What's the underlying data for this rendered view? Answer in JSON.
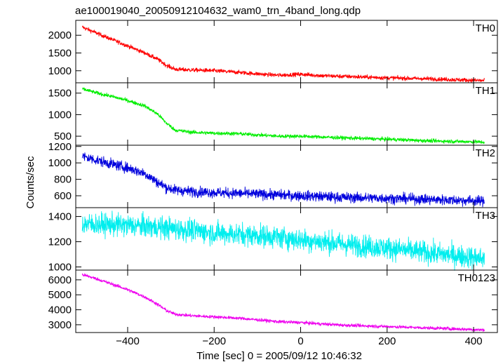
{
  "chart_data": {
    "type": "line",
    "title": "ae100019040_20050912104632_wam0_trn_4band_long.qdp",
    "xlabel": "Time [sec] 0 = 2005/09/12 10:46:32",
    "ylabel": "Counts/sec",
    "xlim": [
      -520,
      455
    ],
    "x_ticks": [
      -400,
      -200,
      0,
      200,
      400
    ],
    "x_tick_labels": [
      "−400",
      "−200",
      "0",
      "200",
      "400"
    ],
    "grid": false,
    "panels": [
      {
        "name": "TH0",
        "color": "#ff0000",
        "ylim": [
          660,
          2420
        ],
        "y_ticks": [
          1000,
          1500,
          2000
        ],
        "y_tick_labels": [
          "1000",
          "1500",
          "2000"
        ],
        "noise": 30,
        "x": [
          -505,
          -470,
          -440,
          -400,
          -360,
          -330,
          -310,
          -290,
          -250,
          -200,
          -150,
          -100,
          -50,
          0,
          50,
          100,
          200,
          300,
          400,
          425
        ],
        "y": [
          2230,
          2050,
          1900,
          1700,
          1500,
          1320,
          1150,
          1040,
          1020,
          1000,
          960,
          910,
          870,
          900,
          860,
          840,
          800,
          770,
          730,
          720
        ]
      },
      {
        "name": "TH1",
        "color": "#00ee00",
        "ylim": [
          290,
          1740
        ],
        "y_ticks": [
          500,
          1000,
          1500
        ],
        "y_tick_labels": [
          "500",
          "1000",
          "1500"
        ],
        "noise": 22,
        "x": [
          -505,
          -470,
          -440,
          -400,
          -360,
          -330,
          -310,
          -290,
          -250,
          -200,
          -150,
          -100,
          -50,
          0,
          50,
          100,
          200,
          300,
          400,
          425
        ],
        "y": [
          1600,
          1500,
          1430,
          1330,
          1200,
          1010,
          800,
          640,
          590,
          570,
          560,
          530,
          500,
          500,
          480,
          460,
          430,
          390,
          370,
          360
        ]
      },
      {
        "name": "TH2",
        "color": "#0000dd",
        "ylim": [
          455,
          1215
        ],
        "y_ticks": [
          600,
          800,
          1000,
          1200
        ],
        "y_tick_labels": [
          "600",
          "800",
          "1000",
          "1200"
        ],
        "noise": 32,
        "x": [
          -505,
          -470,
          -440,
          -400,
          -360,
          -330,
          -310,
          -290,
          -250,
          -200,
          -150,
          -100,
          -50,
          0,
          50,
          100,
          200,
          300,
          400,
          425
        ],
        "y": [
          1080,
          1030,
          990,
          940,
          870,
          760,
          700,
          670,
          650,
          640,
          630,
          620,
          610,
          600,
          590,
          580,
          570,
          555,
          540,
          535
        ]
      },
      {
        "name": "TH3",
        "color": "#00eeee",
        "ylim": [
          975,
          1470
        ],
        "y_ticks": [
          1000,
          1200,
          1400
        ],
        "y_tick_labels": [
          "1000",
          "1200",
          "1400"
        ],
        "noise": 45,
        "x": [
          -505,
          -450,
          -400,
          -350,
          -300,
          -250,
          -200,
          -150,
          -100,
          -50,
          0,
          50,
          100,
          200,
          300,
          400,
          425
        ],
        "y": [
          1340,
          1335,
          1330,
          1320,
          1305,
          1290,
          1270,
          1260,
          1250,
          1235,
          1215,
          1200,
          1180,
          1150,
          1110,
          1075,
          1065
        ]
      },
      {
        "name": "TH0123",
        "color": "#ee00ee",
        "ylim": [
          2480,
          6650
        ],
        "y_ticks": [
          3000,
          4000,
          5000,
          6000
        ],
        "y_tick_labels": [
          "3000",
          "4000",
          "5000",
          "6000"
        ],
        "noise": 55,
        "x": [
          -505,
          -470,
          -440,
          -400,
          -360,
          -330,
          -310,
          -290,
          -250,
          -200,
          -150,
          -100,
          -50,
          0,
          50,
          100,
          200,
          300,
          400,
          425
        ],
        "y": [
          6350,
          6050,
          5750,
          5350,
          4850,
          4350,
          3950,
          3700,
          3600,
          3530,
          3450,
          3330,
          3200,
          3150,
          3050,
          2970,
          2880,
          2780,
          2680,
          2650
        ]
      }
    ]
  }
}
